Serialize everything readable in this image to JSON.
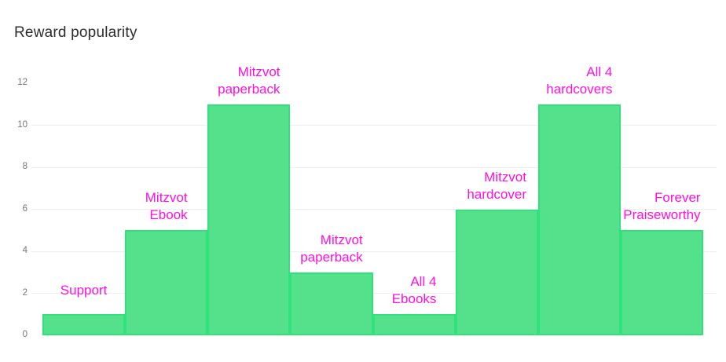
{
  "page": {
    "title": "Reward popularity"
  },
  "colors": {
    "background": "#ffffff",
    "title_text": "#2d2d2d",
    "bar_fill": "#55e08c",
    "bar_border": "#2ee47a",
    "bar_label_text": "#ff0fe1",
    "gridline": "#efefef",
    "tick_text": "#757575"
  },
  "chart_data": {
    "type": "bar",
    "title": "Reward popularity",
    "categories": [
      "Support",
      "Mitzvot Ebook",
      "Mitzvot paperback",
      "Mitzvot paperback",
      "All 4 Ebooks",
      "Mitzvot hardcover",
      "All 4 hardcovers",
      "Forever Praiseworthy"
    ],
    "category_lines": [
      [
        "Support"
      ],
      [
        "Mitzvot",
        "Ebook"
      ],
      [
        "Mitzvot",
        "paperback"
      ],
      [
        "Mitzvot",
        "paperback"
      ],
      [
        "All 4",
        "Ebooks"
      ],
      [
        "Mitzvot",
        "hardcover"
      ],
      [
        "All 4",
        "hardcovers"
      ],
      [
        "Forever",
        "Praiseworthy"
      ]
    ],
    "values": [
      1,
      5,
      11,
      3,
      1,
      6,
      11,
      5
    ],
    "xlabel": "",
    "ylabel": "",
    "ylim": [
      0,
      12
    ],
    "yticks": [
      0,
      2,
      4,
      6,
      8,
      10,
      12
    ],
    "gridline_ticks": [
      2,
      4,
      6,
      8,
      10
    ],
    "grid": "horizontal",
    "legend": "none",
    "bar_gap": 0,
    "label_position": "above-bars",
    "label_text_alignment": "right"
  }
}
